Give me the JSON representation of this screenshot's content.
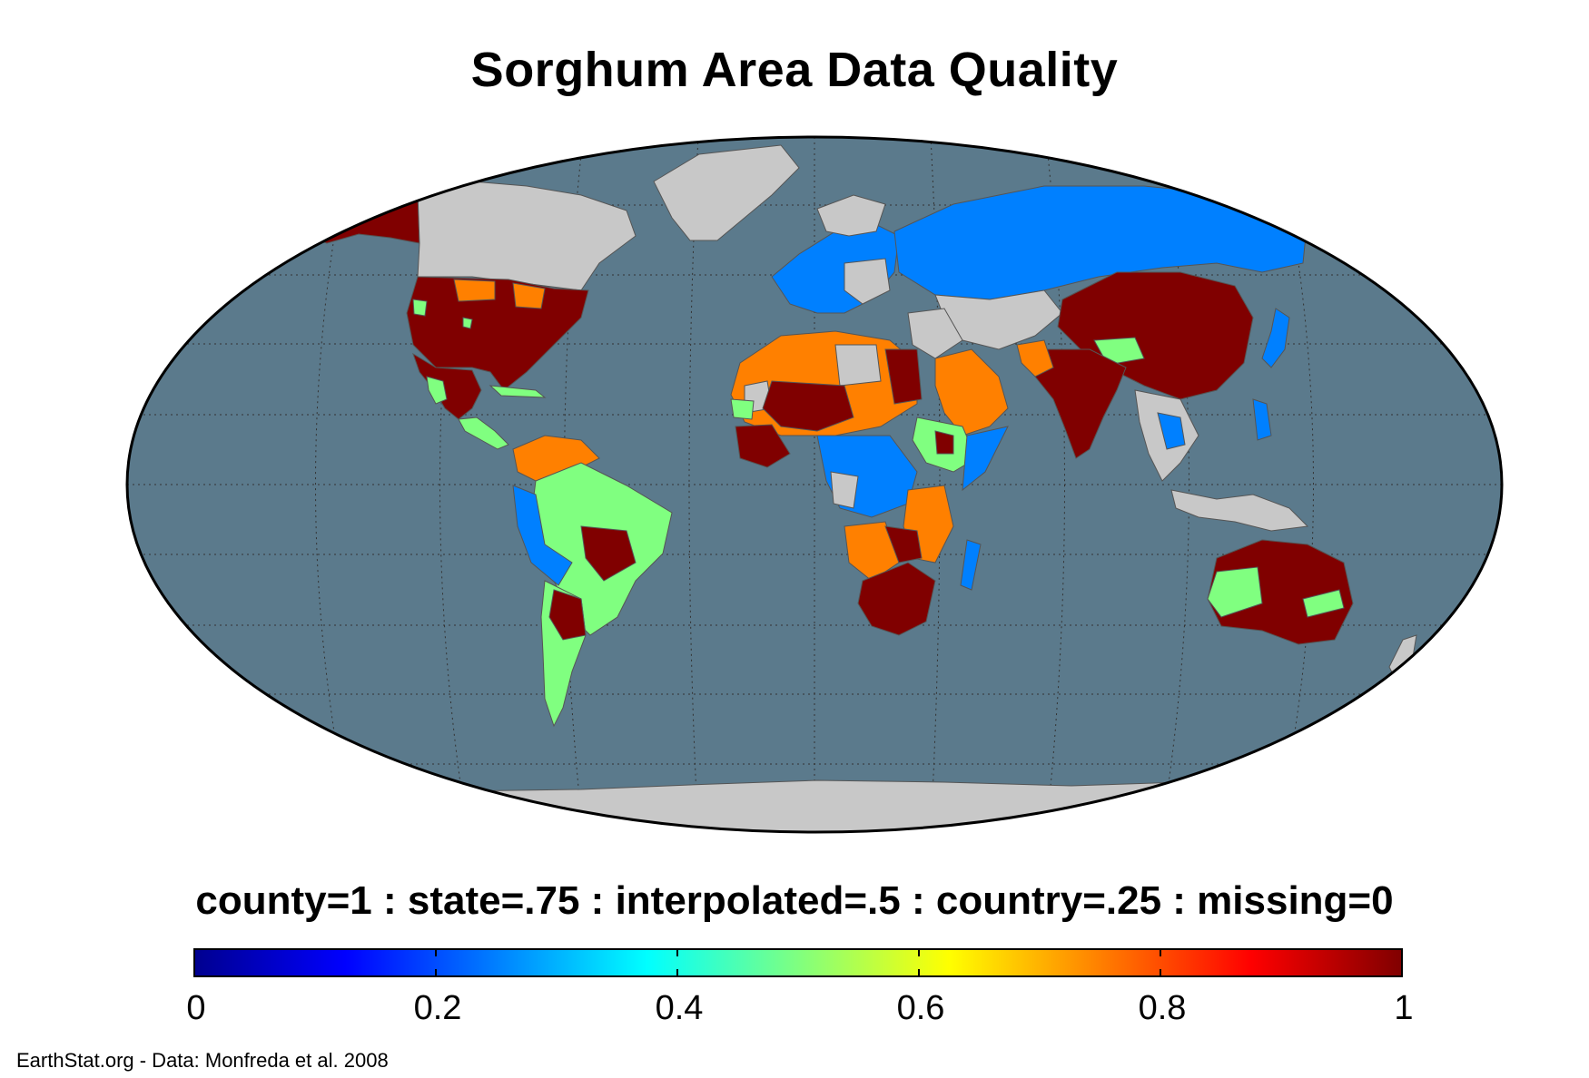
{
  "title": "Sorghum Area Data Quality",
  "legend": {
    "caption": "county=1 : state=.75 : interpolated=.5 : country=.25 : missing=0",
    "tick_labels": [
      "0",
      "0.2",
      "0.4",
      "0.6",
      "0.8",
      "1"
    ],
    "range": [
      0,
      1
    ],
    "colormap": "jet",
    "levels": [
      {
        "name": "county",
        "value": 1
      },
      {
        "name": "state",
        "value": 0.75
      },
      {
        "name": "interpolated",
        "value": 0.5
      },
      {
        "name": "country",
        "value": 0.25
      },
      {
        "name": "missing",
        "value": 0
      }
    ]
  },
  "credit": "EarthStat.org - Data: Monfreda et al. 2008",
  "colors": {
    "ocean": "#5b7a8c",
    "no_data_land": "#c8c8c8",
    "level_1": "#800000",
    "level_075": "#ff8000",
    "level_05": "#80ff80",
    "level_025": "#0080ff"
  },
  "map": {
    "projection": "Robinson",
    "graticule": true,
    "regions": [
      {
        "name": "Alaska",
        "level": 1
      },
      {
        "name": "Canada",
        "level": "none"
      },
      {
        "name": "Greenland",
        "level": "none"
      },
      {
        "name": "United States",
        "level": 1
      },
      {
        "name": "Mexico",
        "level": 1
      },
      {
        "name": "Central America",
        "level": 0.5
      },
      {
        "name": "Colombia / Venezuela",
        "level": 0.75
      },
      {
        "name": "Peru / Bolivia",
        "level": 0.25
      },
      {
        "name": "Brazil",
        "level": 0.5
      },
      {
        "name": "Argentina",
        "level": 0.5
      },
      {
        "name": "Western Europe",
        "level": 0.25
      },
      {
        "name": "Russia",
        "level": 0.25
      },
      {
        "name": "Central Asia",
        "level": "none"
      },
      {
        "name": "China",
        "level": 1
      },
      {
        "name": "India",
        "level": 1
      },
      {
        "name": "Southeast Asia",
        "level": "none"
      },
      {
        "name": "West Africa",
        "level": 0.75
      },
      {
        "name": "Sahel",
        "level": 1
      },
      {
        "name": "Egypt",
        "level": 1
      },
      {
        "name": "Arabian Peninsula",
        "level": 0.75
      },
      {
        "name": "Ethiopia",
        "level": 0.5
      },
      {
        "name": "Central Africa",
        "level": 0.25
      },
      {
        "name": "East Africa",
        "level": 0.75
      },
      {
        "name": "Southern Africa",
        "level": 1
      },
      {
        "name": "Madagascar",
        "level": 0.25
      },
      {
        "name": "Australia",
        "level": 1
      },
      {
        "name": "Antarctica",
        "level": "none"
      }
    ]
  }
}
